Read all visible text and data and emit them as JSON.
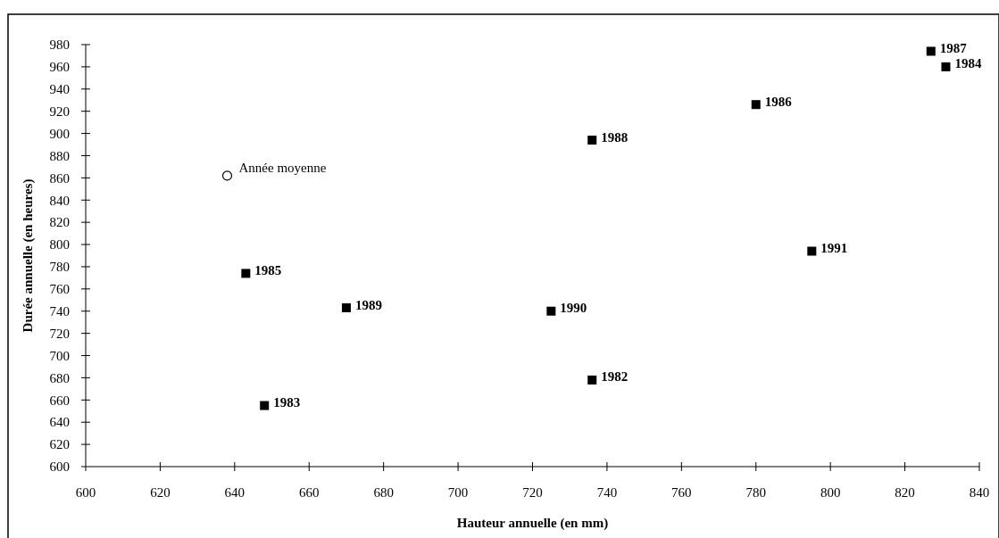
{
  "chart_data": {
    "type": "scatter",
    "xlabel": "Hauteur annuelle (en mm)",
    "ylabel": "Durée annuelle (en heures)",
    "xlim": [
      600,
      840
    ],
    "xticks": [
      600,
      620,
      640,
      660,
      680,
      700,
      720,
      740,
      760,
      780,
      800,
      820,
      840
    ],
    "ylim": [
      600,
      980
    ],
    "yticks": [
      600,
      620,
      640,
      660,
      680,
      700,
      720,
      740,
      760,
      780,
      800,
      820,
      840,
      860,
      880,
      900,
      920,
      940,
      960,
      980
    ],
    "grid": false,
    "series": [
      {
        "color": "#000000",
        "marker": "square",
        "x": [
          736,
          648,
          831,
          643,
          780,
          827,
          736,
          670,
          725,
          795
        ],
        "values": [
          678,
          655,
          960,
          774,
          926,
          974,
          894,
          743,
          740,
          794
        ]
      },
      {
        "name": "Année moyenne",
        "color": "#000000",
        "marker": "circle",
        "x": [
          638
        ],
        "values": [
          862
        ]
      }
    ],
    "annotations": [
      {
        "text": "1982",
        "x": 736,
        "y": 678
      },
      {
        "text": "1983",
        "x": 648,
        "y": 655
      },
      {
        "text": "1984",
        "x": 831,
        "y": 960
      },
      {
        "text": "1985",
        "x": 643,
        "y": 774
      },
      {
        "text": "1986",
        "x": 780,
        "y": 926
      },
      {
        "text": "1987",
        "x": 827,
        "y": 974
      },
      {
        "text": "1988",
        "x": 736,
        "y": 894
      },
      {
        "text": "1989",
        "x": 670,
        "y": 743
      },
      {
        "text": "1990",
        "x": 725,
        "y": 740
      },
      {
        "text": "1991",
        "x": 795,
        "y": 794
      }
    ]
  }
}
